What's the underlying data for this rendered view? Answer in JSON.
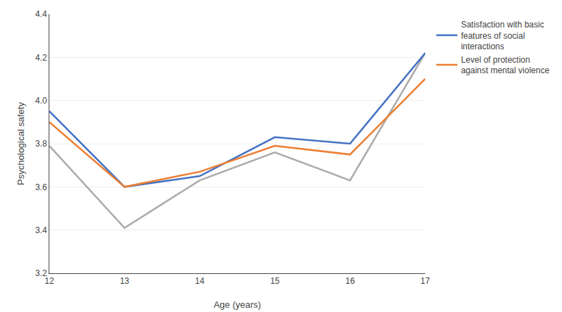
{
  "chart_data": {
    "type": "line",
    "x": [
      12,
      13,
      14,
      15,
      16,
      17
    ],
    "series": [
      {
        "color": "#ABABAB",
        "values": [
          3.79,
          3.41,
          3.63,
          3.76,
          3.63,
          4.22
        ]
      },
      {
        "name": "Satisfaction with basic\nfeatures of social\ninteractions",
        "color": "#4472C4",
        "values": [
          3.95,
          3.6,
          3.65,
          3.83,
          3.8,
          4.22
        ]
      },
      {
        "name": "Level of protection\nagainst mental violence",
        "color": "#ED7D31",
        "values": [
          3.9,
          3.6,
          3.67,
          3.79,
          3.75,
          4.1
        ]
      }
    ],
    "xlabel": "Age (years)",
    "ylabel": "Psychological safety",
    "xlim": [
      12,
      17
    ],
    "xticks": [
      12,
      13,
      14,
      15,
      16,
      17
    ],
    "ylim": [
      3.2,
      4.4
    ],
    "yticks": [
      3.2,
      3.4,
      3.6,
      3.8,
      {
        "value": 4.0,
        "label": "4.0"
      },
      4.2,
      4.4
    ],
    "grid": "y",
    "legend": "right"
  }
}
